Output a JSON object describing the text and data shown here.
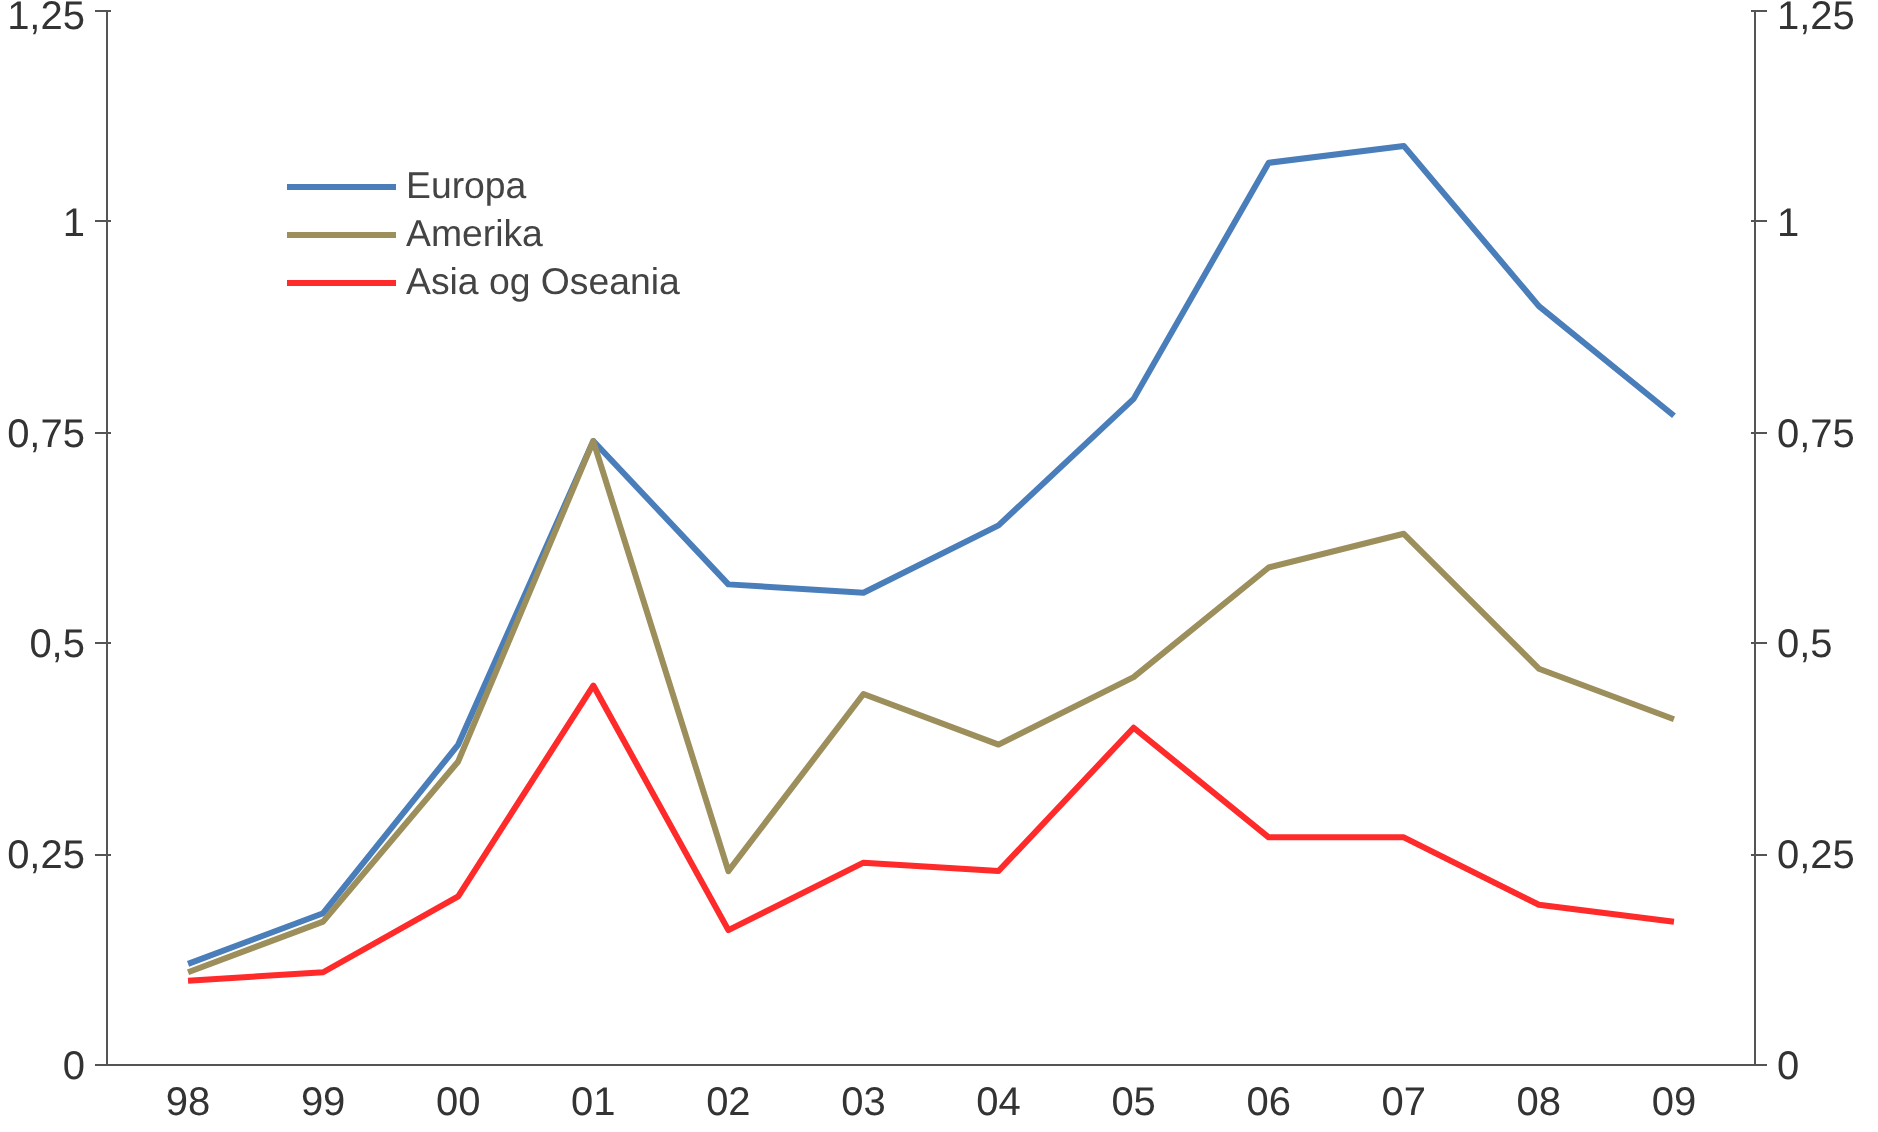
{
  "chart_data": {
    "type": "line",
    "categories": [
      "98",
      "99",
      "00",
      "01",
      "02",
      "03",
      "04",
      "05",
      "06",
      "07",
      "08",
      "09"
    ],
    "series": [
      {
        "name": "Europa",
        "color": "#4a7ebb",
        "values": [
          0.12,
          0.18,
          0.38,
          0.74,
          0.57,
          0.56,
          0.64,
          0.79,
          1.07,
          1.09,
          0.9,
          0.77
        ]
      },
      {
        "name": "Amerika",
        "color": "#9c8f5c",
        "values": [
          0.11,
          0.17,
          0.36,
          0.74,
          0.23,
          0.44,
          0.38,
          0.46,
          0.59,
          0.63,
          0.47,
          0.41
        ]
      },
      {
        "name": "Asia og Oseania",
        "color": "#ff2a2a",
        "values": [
          0.1,
          0.11,
          0.2,
          0.45,
          0.16,
          0.24,
          0.23,
          0.4,
          0.27,
          0.27,
          0.19,
          0.17
        ]
      }
    ],
    "ylim": [
      0,
      1.25
    ],
    "yticks": [
      0,
      {
        "value": 0.25,
        "label": "0,25"
      },
      {
        "value": 0.5,
        "label": "0,5"
      },
      {
        "value": 0.75,
        "label": "0,75"
      },
      1,
      {
        "value": 1.25,
        "label": "1,25"
      }
    ],
    "y2lim": [
      0,
      1.25
    ],
    "y2ticks": [
      0,
      {
        "value": 0.25,
        "label": "0,25"
      },
      {
        "value": 0.5,
        "label": "0,5"
      },
      {
        "value": 0.75,
        "label": "0,75"
      },
      1,
      {
        "value": 1.25,
        "label": "1,25"
      }
    ],
    "grid": false,
    "legend": "top left",
    "marker": "none",
    "line_style": "solid"
  }
}
